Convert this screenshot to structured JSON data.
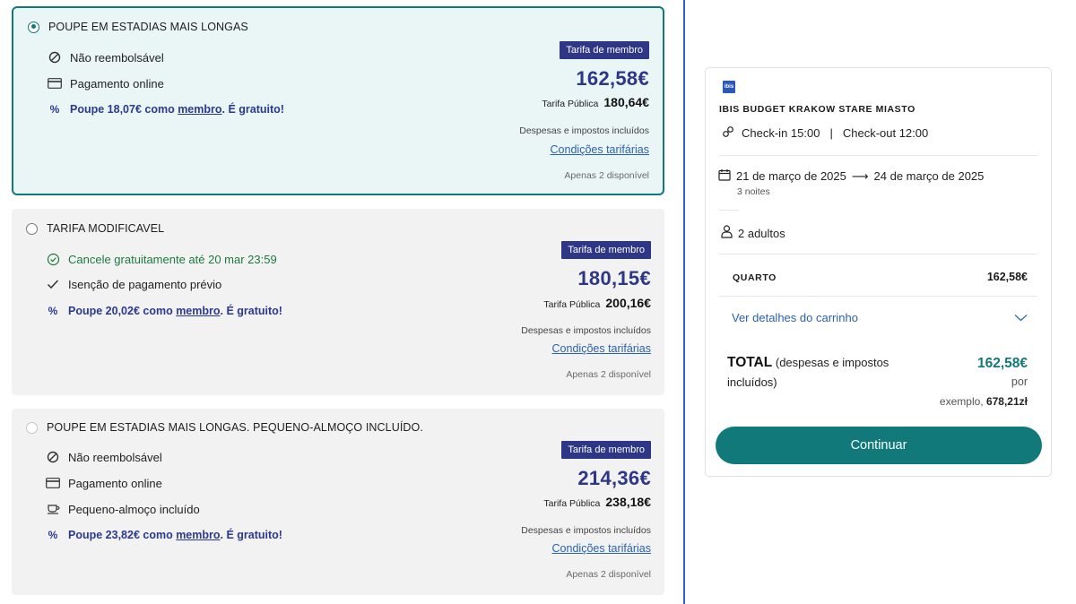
{
  "rates": [
    {
      "title": "POUPE EM ESTADIAS MAIS LONGAS",
      "selected": true,
      "features": [
        {
          "icon": "not-refundable-icon",
          "text": "Não reembolsável"
        },
        {
          "icon": "credit-card-icon",
          "text": "Pagamento online"
        }
      ],
      "promo": {
        "prefix": "Poupe 18,07€ como ",
        "link": "membro",
        "suffix": ". É gratuito!"
      },
      "badge": "Tarifa de membro",
      "price": "162,58€",
      "public_label": "Tarifa Pública",
      "public_price": "180,64€",
      "taxes": "Despesas e impostos incluídos",
      "conditions": "Condições tarifárias",
      "availability": "Apenas 2 disponível"
    },
    {
      "title": "TARIFA MODIFICAVEL",
      "selected": false,
      "features": [
        {
          "icon": "check-circle-icon",
          "text": "Cancele gratuitamente até 20 mar 23:59"
        },
        {
          "icon": "checkmark-icon",
          "text": "Isenção de pagamento prévio"
        }
      ],
      "promo": {
        "prefix": "Poupe 20,02€ como ",
        "link": "membro",
        "suffix": ". É gratuito!"
      },
      "badge": "Tarifa de membro",
      "price": "180,15€",
      "public_label": "Tarifa Pública",
      "public_price": "200,16€",
      "taxes": "Despesas e impostos incluídos",
      "conditions": "Condições tarifárias",
      "availability": "Apenas 2 disponível"
    },
    {
      "title": "POUPE EM ESTADIAS MAIS LONGAS. PEQUENO-ALMOÇO INCLUÍDO.",
      "selected": false,
      "features": [
        {
          "icon": "not-refundable-icon",
          "text": "Não reembolsável"
        },
        {
          "icon": "credit-card-icon",
          "text": "Pagamento online"
        },
        {
          "icon": "coffee-cup-icon",
          "text": "Pequeno-almoço incluído"
        }
      ],
      "promo": {
        "prefix": "Poupe 23,82€ como ",
        "link": "membro",
        "suffix": ". É gratuito!"
      },
      "badge": "Tarifa de membro",
      "price": "214,36€",
      "public_label": "Tarifa Pública",
      "public_price": "238,18€",
      "taxes": "Despesas e impostos incluídos",
      "conditions": "Condições tarifárias",
      "availability": "Apenas 2 disponível"
    }
  ],
  "summary": {
    "logo_text": "ibis",
    "hotel_name": "IBIS BUDGET KRAKOW STARE MIASTO",
    "checkin": "Check-in 15:00",
    "divider": "|",
    "checkout": "Check-out 12:00",
    "date_from": "21 de março de 2025",
    "arrow": "⟶",
    "date_to": "24 de março de 2025",
    "nights": "3 noites",
    "guests": "2 adultos",
    "room_label": "QUARTO",
    "room_price": "162,58€",
    "cart_link": "Ver detalhes do carrinho",
    "total_label": "TOTAL",
    "total_note": "(despesas e impostos incluídos)",
    "total_price": "162,58€",
    "per": "por",
    "example_prefix": "exemplo, ",
    "example_value": "678,21zł",
    "continue": "Continuar"
  },
  "colors": {
    "accent": "#12797a",
    "member_badge": "#2e3785",
    "link": "#2a63b0",
    "divider_line": "#2f63c8"
  }
}
